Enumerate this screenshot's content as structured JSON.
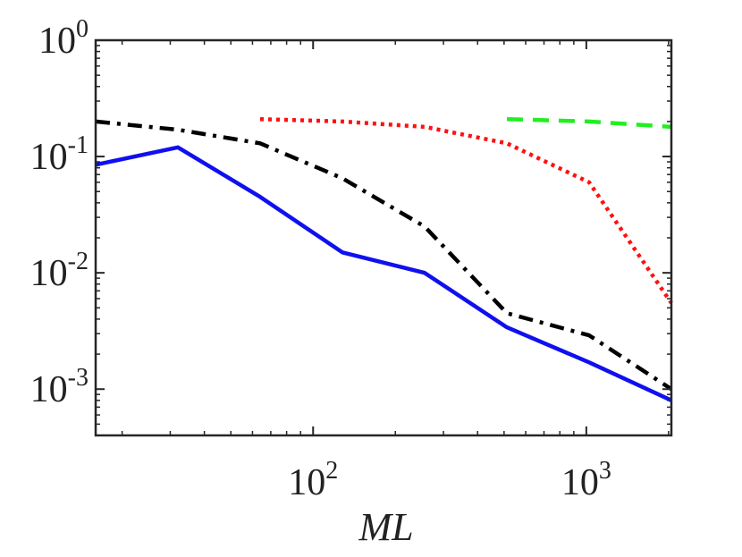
{
  "chart_data": {
    "type": "line",
    "title": "",
    "xlabel": "ML",
    "ylabel": "",
    "xscale": "log",
    "yscale": "log",
    "xlim": [
      16,
      2048
    ],
    "ylim": [
      0.0004,
      1
    ],
    "grid": false,
    "colors": {
      "axis": "#262626",
      "tick_text": "#222222"
    },
    "x_ticks": [
      {
        "value": 100,
        "base": "10",
        "exp": "2"
      },
      {
        "value": 1000,
        "base": "10",
        "exp": "3"
      }
    ],
    "y_ticks": [
      {
        "value": 1,
        "base": "10",
        "exp": "0"
      },
      {
        "value": 0.1,
        "base": "10",
        "exp": "-1"
      },
      {
        "value": 0.01,
        "base": "10",
        "exp": "-2"
      },
      {
        "value": 0.001,
        "base": "10",
        "exp": "-3"
      }
    ],
    "series": [
      {
        "name": "blue-solid",
        "color": "#1010ee",
        "style": "solid",
        "x": [
          16,
          32,
          64,
          128,
          256,
          512,
          1024,
          2048
        ],
        "y": [
          0.085,
          0.12,
          0.045,
          0.015,
          0.01,
          0.0034,
          0.0017,
          0.0008
        ]
      },
      {
        "name": "black-dashdot",
        "color": "#000000",
        "style": "dashdot",
        "x": [
          16,
          32,
          64,
          128,
          256,
          512,
          1024,
          2048
        ],
        "y": [
          0.2,
          0.17,
          0.13,
          0.065,
          0.025,
          0.0045,
          0.0029,
          0.001
        ]
      },
      {
        "name": "red-dotted",
        "color": "#ff1010",
        "style": "dotted",
        "x": [
          64,
          128,
          256,
          512,
          1024,
          2048
        ],
        "y": [
          0.21,
          0.2,
          0.18,
          0.13,
          0.06,
          0.0055
        ]
      },
      {
        "name": "green-dashed",
        "color": "#22ee22",
        "style": "dashed",
        "x": [
          512,
          1024,
          2048
        ],
        "y": [
          0.21,
          0.2,
          0.18
        ]
      }
    ]
  }
}
